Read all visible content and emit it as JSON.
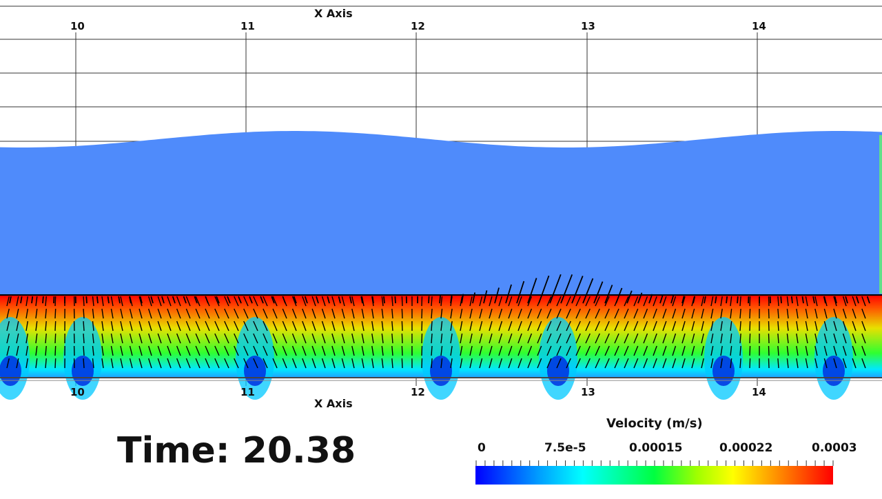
{
  "axes": {
    "top_title": "X Axis",
    "bottom_title": "X Axis",
    "top_ticks": [
      "10",
      "11",
      "12",
      "13",
      "14"
    ],
    "bottom_ticks": [
      "10",
      "11",
      "12",
      "13",
      "14"
    ]
  },
  "time": {
    "label": "Time: 20.38"
  },
  "legend": {
    "title": "Velocity (m/s)",
    "ticks": [
      "0",
      "7.5e-5",
      "0.00015",
      "0.00022",
      "0.0003"
    ],
    "colormap": [
      "#0000ff",
      "#00a0ff",
      "#00ffff",
      "#00ff40",
      "#a0ff00",
      "#ffff00",
      "#ff8000",
      "#ff0000"
    ]
  },
  "colors": {
    "water": "#4f8bfb",
    "grid": "#333333",
    "arrow": "#000000"
  }
}
